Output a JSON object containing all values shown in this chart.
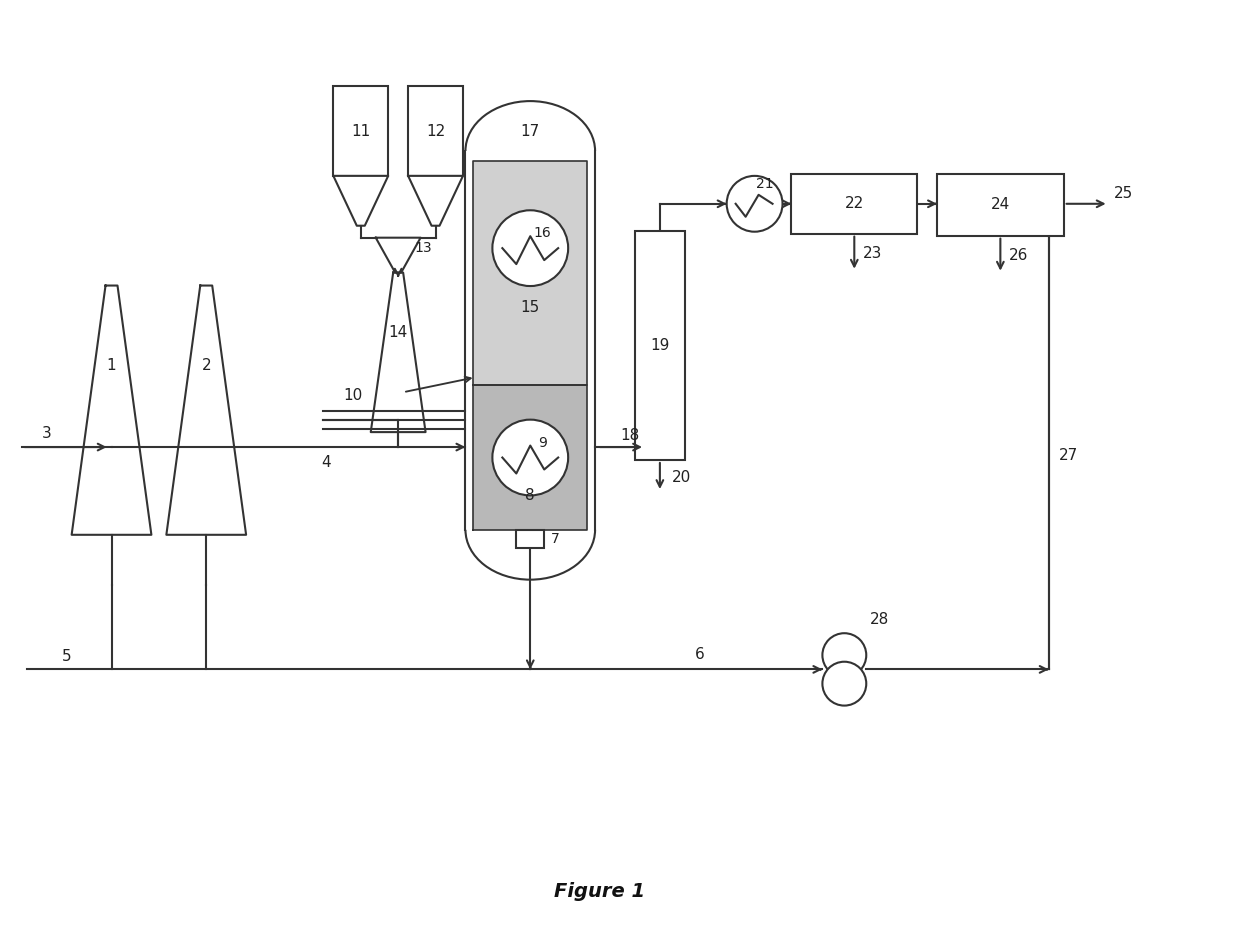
{
  "fig_width": 12.4,
  "fig_height": 9.35,
  "dpi": 100,
  "bg_color": "#ffffff",
  "line_color": "#333333",
  "lw": 1.5,
  "figure_title": "Figure 1",
  "title_fontsize": 14,
  "label_fontsize": 11
}
